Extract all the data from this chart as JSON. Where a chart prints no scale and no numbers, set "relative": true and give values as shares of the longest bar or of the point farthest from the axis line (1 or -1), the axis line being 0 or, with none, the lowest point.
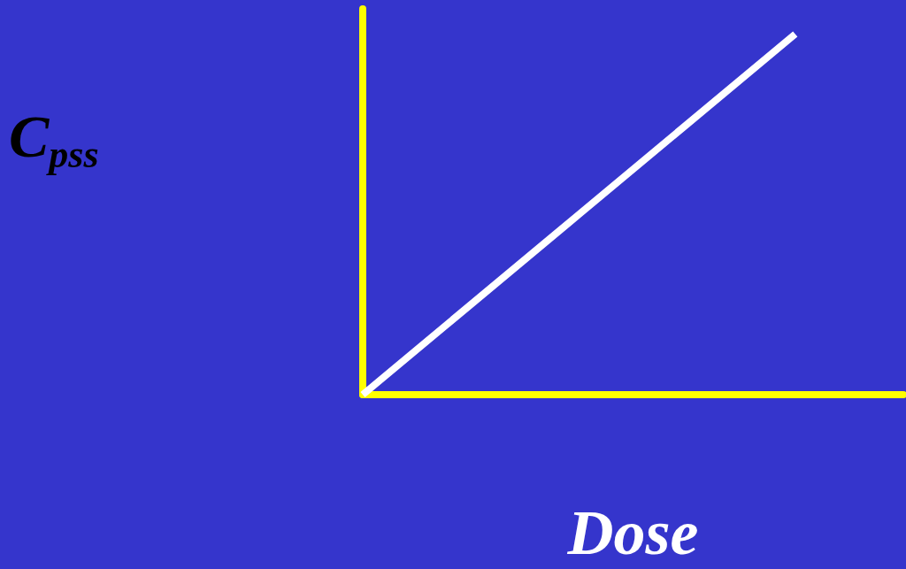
{
  "chart_data": {
    "type": "line",
    "xlabel": "Dose",
    "ylabel": "C$_{pss}$",
    "relative": true,
    "marker": "none",
    "categories": [
      null,
      null,
      null,
      null,
      null,
      null
    ],
    "series": [
      {
        "color": "#ffffff",
        "values": [
          0,
          0.25,
          0.5,
          0.75,
          1,
          null
        ]
      }
    ]
  }
}
